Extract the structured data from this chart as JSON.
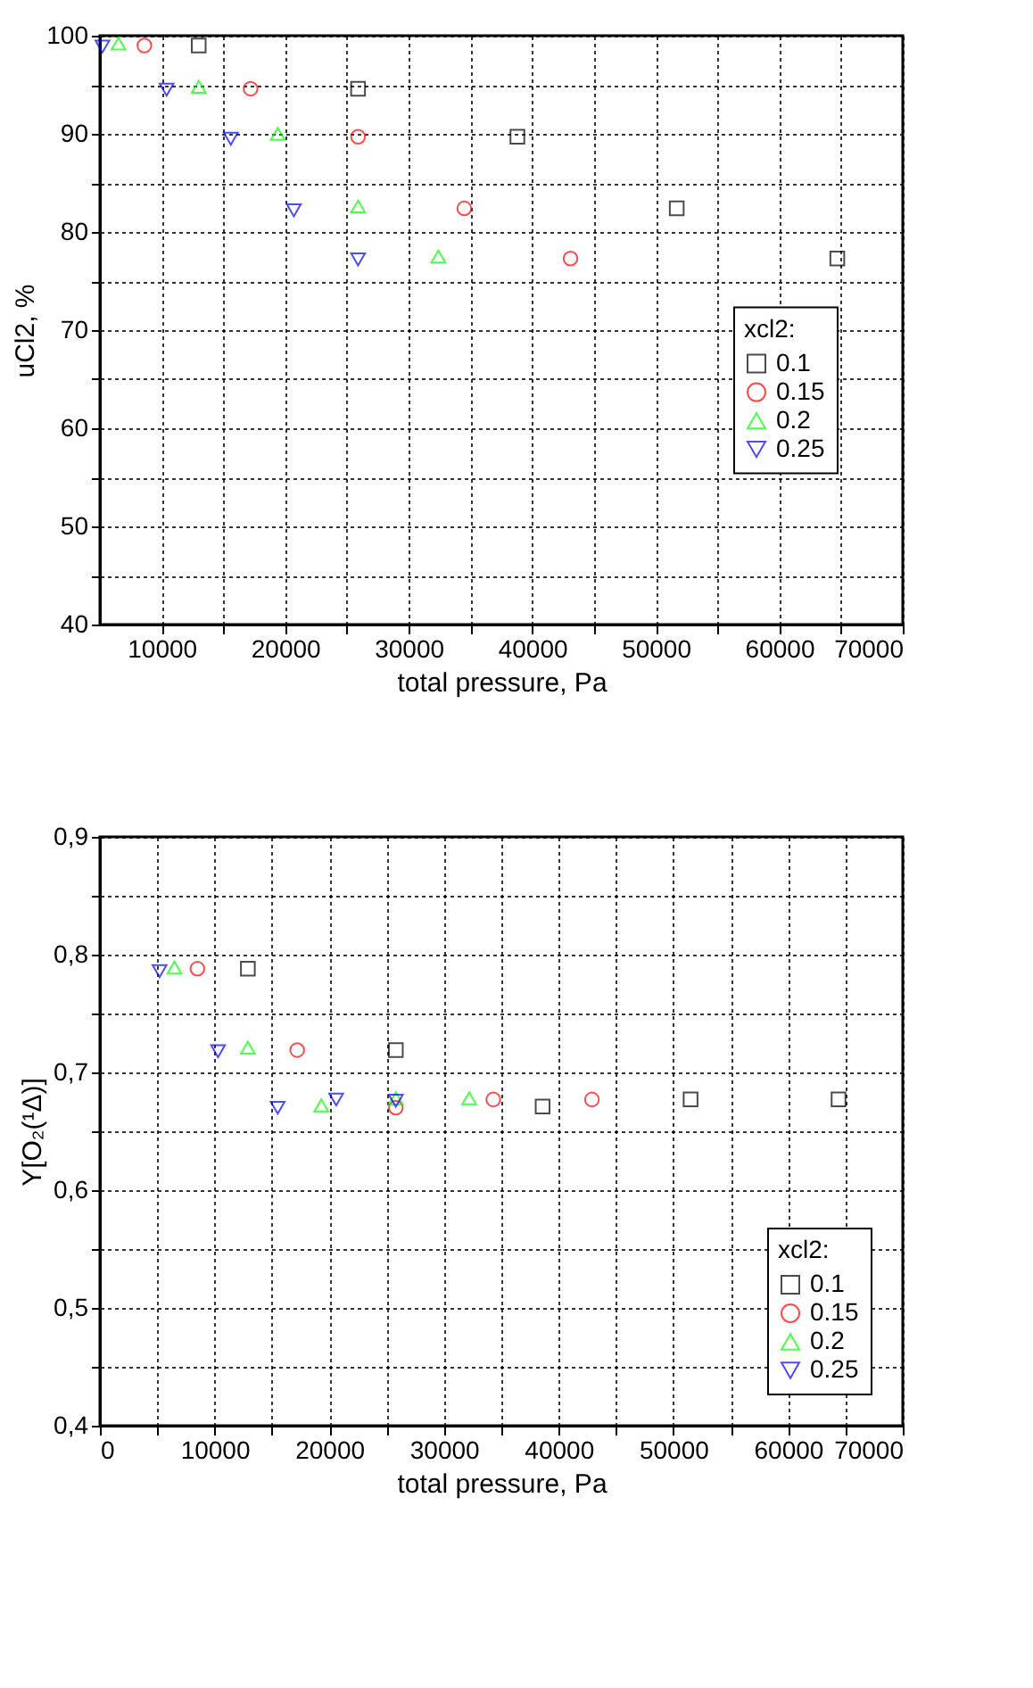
{
  "chart_data": [
    {
      "type": "scatter",
      "xlabel": "total pressure, Pa",
      "ylabel": "uCl2, %",
      "legend_title": "xcl2:",
      "legend": "right",
      "grid": true,
      "xlim": [
        5000,
        70000
      ],
      "ylim": [
        40,
        100
      ],
      "xticks": [
        10000,
        {
          "value": 15000,
          "label": null
        },
        20000,
        {
          "value": 25000,
          "label": null
        },
        30000,
        {
          "value": 35000,
          "label": null
        },
        40000,
        {
          "value": 45000,
          "label": null
        },
        50000,
        {
          "value": 55000,
          "label": null
        },
        60000,
        {
          "value": 65000,
          "label": null
        },
        70000
      ],
      "yticks": [
        40,
        {
          "value": 45,
          "label": null
        },
        50,
        {
          "value": 55,
          "label": null
        },
        60,
        {
          "value": 65,
          "label": null
        },
        70,
        {
          "value": 75,
          "label": null
        },
        80,
        {
          "value": 85,
          "label": null
        },
        90,
        {
          "value": 95,
          "label": null
        },
        100
      ],
      "series": [
        {
          "name": "0.1",
          "color": "#000000",
          "marker": "square",
          "x": [
            13000,
            25900,
            38800,
            51700,
            64700
          ],
          "values": [
            99,
            94.6,
            89.7,
            82.4,
            77.3
          ]
        },
        {
          "name": "0.15",
          "color": "#ff0000",
          "marker": "circle",
          "x": [
            8600,
            17200,
            25900,
            34500,
            43100
          ],
          "values": [
            99,
            94.6,
            89.7,
            82.4,
            77.3
          ]
        },
        {
          "name": "0.2",
          "color": "#00ff00",
          "marker": "triangle",
          "x": [
            6500,
            13000,
            19400,
            25900,
            32400
          ],
          "values": [
            99.2,
            94.8,
            90,
            82.6,
            77.5
          ]
        },
        {
          "name": "0.25",
          "color": "#0000ff",
          "marker": "triangle-down",
          "x": [
            5200,
            10400,
            15600,
            20700,
            25900
          ],
          "values": [
            98.9,
            94.5,
            89.5,
            82.2,
            77.2
          ]
        }
      ]
    },
    {
      "type": "scatter",
      "xlabel": "total pressure, Pa",
      "ylabel": "Y[O₂(¹Δ)]",
      "legend_title": "xcl2:",
      "legend": "bottom right",
      "grid": true,
      "xlim": [
        0,
        70000
      ],
      "ylim": [
        0.4,
        0.9
      ],
      "xticks": [
        0,
        {
          "value": 5000,
          "label": null
        },
        10000,
        {
          "value": 15000,
          "label": null
        },
        20000,
        {
          "value": 25000,
          "label": null
        },
        30000,
        {
          "value": 35000,
          "label": null
        },
        40000,
        {
          "value": 45000,
          "label": null
        },
        50000,
        {
          "value": 55000,
          "label": null
        },
        60000,
        {
          "value": 65000,
          "label": null
        },
        70000
      ],
      "yticks": [
        {
          "value": 0.4,
          "label": "0,4"
        },
        {
          "value": 0.45,
          "label": null
        },
        {
          "value": 0.5,
          "label": "0,5"
        },
        {
          "value": 0.55,
          "label": null
        },
        {
          "value": 0.6,
          "label": "0,6"
        },
        {
          "value": 0.65,
          "label": null
        },
        {
          "value": 0.7,
          "label": "0,7"
        },
        {
          "value": 0.75,
          "label": null
        },
        {
          "value": 0.8,
          "label": "0,8"
        },
        {
          "value": 0.85,
          "label": null
        },
        {
          "value": 0.9,
          "label": "0,9"
        }
      ],
      "series": [
        {
          "name": "0.1",
          "color": "#000000",
          "marker": "square",
          "x": [
            12900,
            25800,
            38600,
            51500,
            64400
          ],
          "values": [
            0.788,
            0.719,
            0.671,
            0.677,
            0.677
          ]
        },
        {
          "name": "0.15",
          "color": "#ff0000",
          "marker": "circle",
          "x": [
            8500,
            17200,
            25800,
            34300,
            42900
          ],
          "values": [
            0.788,
            0.719,
            0.67,
            0.677,
            0.677
          ]
        },
        {
          "name": "0.2",
          "color": "#00ff00",
          "marker": "triangle",
          "x": [
            6500,
            12900,
            19300,
            25800,
            32200
          ],
          "values": [
            0.789,
            0.721,
            0.672,
            0.678,
            0.678
          ]
        },
        {
          "name": "0.25",
          "color": "#0000ff",
          "marker": "triangle-down",
          "x": [
            5200,
            10300,
            15500,
            20600,
            25800
          ],
          "values": [
            0.786,
            0.718,
            0.67,
            0.677,
            0.676
          ]
        }
      ]
    }
  ]
}
